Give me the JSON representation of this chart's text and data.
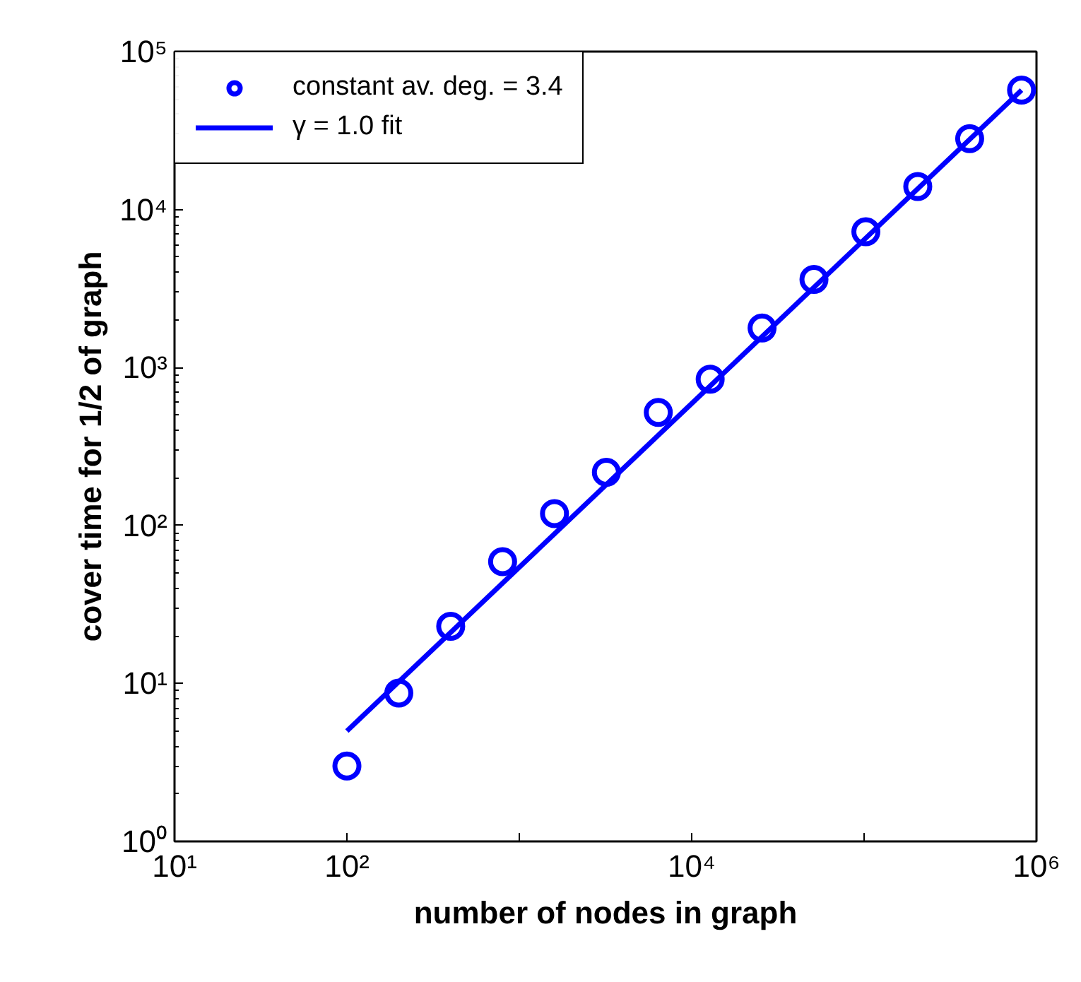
{
  "chart_data": {
    "type": "scatter",
    "xlabel": "number of nodes in graph",
    "ylabel": "cover time for 1/2 of graph",
    "log": "xy",
    "grid": false,
    "legend": "top left",
    "xlim": [
      10,
      1000000
    ],
    "xticks": [
      {
        "value": 10,
        "label": "10¹"
      },
      {
        "value": 100,
        "label": "10²"
      },
      {
        "value": 1000,
        "label": null
      },
      {
        "value": 10000,
        "label": "10⁴"
      },
      {
        "value": 100000,
        "label": null
      },
      {
        "value": 1000000,
        "label": "10⁶"
      }
    ],
    "ylim": [
      1,
      100000
    ],
    "yticks": [
      {
        "value": 1,
        "label": "10⁰"
      },
      {
        "value": 10,
        "label": "10¹"
      },
      {
        "value": 100,
        "label": "10²"
      },
      {
        "value": 1000,
        "label": "10³"
      },
      {
        "value": 10000,
        "label": "10⁴"
      },
      {
        "value": 100000,
        "label": "10⁵"
      }
    ],
    "series": [
      {
        "name": "constant av. deg. = 3.4",
        "marker": "circle",
        "color": "#0000ff",
        "x": [
          100,
          200,
          400,
          800,
          1600,
          3200,
          6400,
          12800,
          25600,
          51200,
          102400,
          204800,
          409600,
          819200
        ],
        "values": [
          3.0,
          8.7,
          23,
          59,
          119,
          217,
          520,
          843,
          1780,
          3610,
          7240,
          14000,
          28100,
          57100
        ]
      },
      {
        "name": "γ = 1.0 fit",
        "type": "line",
        "line_style": "solid",
        "color": "#0000ff",
        "x": [
          100,
          819200
        ],
        "values": [
          5.0,
          57000
        ]
      }
    ]
  }
}
